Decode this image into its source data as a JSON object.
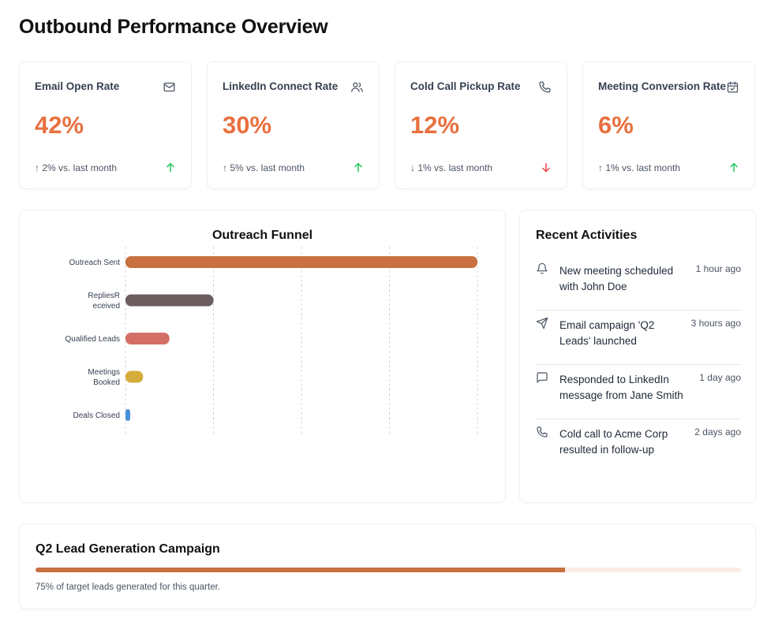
{
  "page": {
    "title": "Outbound Performance Overview"
  },
  "kpis": [
    {
      "label": "Email Open Rate",
      "value": "42%",
      "change": "↑ 2% vs. last month",
      "icon": "mail-icon",
      "trend": "up",
      "trend_color": "#22c55e"
    },
    {
      "label": "LinkedIn Connect Rate",
      "value": "30%",
      "change": "↑ 5% vs. last month",
      "icon": "users-icon",
      "trend": "up",
      "trend_color": "#22c55e"
    },
    {
      "label": "Cold Call Pickup Rate",
      "value": "12%",
      "change": "↓ 1% vs. last month",
      "icon": "phone-icon",
      "trend": "down",
      "trend_color": "#ef4444"
    },
    {
      "label": "Meeting Conversion Rate",
      "value": "6%",
      "change": "↑ 1% vs. last month",
      "icon": "calendar-check-icon",
      "trend": "up",
      "trend_color": "#22c55e"
    }
  ],
  "chart_data": {
    "type": "bar",
    "orientation": "horizontal",
    "title": "Outreach Funnel",
    "categories": [
      "Outreach Sent",
      "RepliesReceived",
      "Qualified Leads",
      "Meetings Booked",
      "Deals Closed"
    ],
    "category_lines": [
      [
        "Outreach Sent"
      ],
      [
        "RepliesR",
        "eceived"
      ],
      [
        "Qualified Leads"
      ],
      [
        "Meetings",
        "Booked"
      ],
      [
        "Deals Closed"
      ]
    ],
    "values": [
      1000,
      250,
      125,
      50,
      12
    ],
    "xlim": [
      0,
      1000
    ],
    "grid": true,
    "colors": [
      "#c8703f",
      "#6b5d60",
      "#d46f66",
      "#d4ad3b",
      "#4a90d9"
    ]
  },
  "activities": {
    "title": "Recent Activities",
    "items": [
      {
        "icon": "bell-icon",
        "text": "New meeting scheduled with John Doe",
        "time": "1 hour ago"
      },
      {
        "icon": "send-icon",
        "text": "Email campaign 'Q2 Leads' launched",
        "time": "3 hours ago"
      },
      {
        "icon": "message-icon",
        "text": "Responded to LinkedIn message from Jane Smith",
        "time": "1 day ago"
      },
      {
        "icon": "phone-icon",
        "text": "Cold call to Acme Corp resulted in follow-up",
        "time": "2 days ago"
      }
    ]
  },
  "campaign": {
    "title": "Q2 Lead Generation Campaign",
    "progress": 75,
    "note": "75% of target leads generated for this quarter.",
    "fill_color": "#c8703f",
    "track_color": "#fbece6"
  }
}
